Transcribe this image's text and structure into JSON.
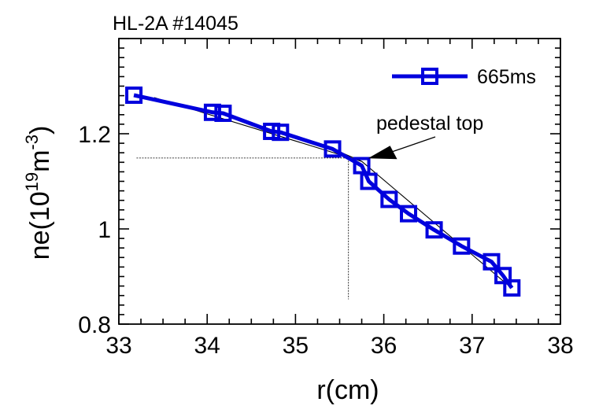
{
  "chart_data": {
    "type": "line",
    "title": "HL-2A #14045",
    "xlabel": "r(cm)",
    "ylabel": {
      "base": "ne(10",
      "exp1": "19",
      "mid": "m",
      "exp2": "-3",
      "end": ")"
    },
    "xlim": [
      33,
      38
    ],
    "ylim": [
      0.8,
      1.4
    ],
    "xticks": [
      "33",
      "34",
      "35",
      "36",
      "37",
      "38"
    ],
    "yticks": [
      "0.8",
      "1",
      "1.2"
    ],
    "ytick_values": [
      0.8,
      1.0,
      1.2
    ],
    "grid": false,
    "legend": "top-right",
    "series": [
      {
        "name": "665ms",
        "color": "#0000dd",
        "marker": "square",
        "x": [
          33.17,
          34.06,
          34.18,
          34.73,
          34.83,
          35.42,
          35.75,
          35.83,
          36.06,
          36.28,
          36.57,
          36.88,
          37.22,
          37.35,
          37.45
        ],
        "y": [
          1.281,
          1.245,
          1.243,
          1.205,
          1.203,
          1.168,
          1.133,
          1.1,
          1.062,
          1.032,
          0.998,
          0.964,
          0.931,
          0.902,
          0.876
        ]
      }
    ],
    "annotations": [
      {
        "text": "pedestal top",
        "arrow_to": [
          35.75,
          1.14
        ]
      }
    ],
    "fit_lines": [
      {
        "x": [
          33.4,
          35.75
        ],
        "y": [
          1.276,
          1.142
        ]
      },
      {
        "x": [
          35.3,
          35.75
        ],
        "y": [
          1.178,
          1.142
        ]
      },
      {
        "x": [
          35.75,
          37.4
        ],
        "y": [
          1.142,
          0.883
        ]
      }
    ],
    "guide_lines": {
      "pedestal_r": 35.6,
      "pedestal_ne": 1.149
    }
  }
}
